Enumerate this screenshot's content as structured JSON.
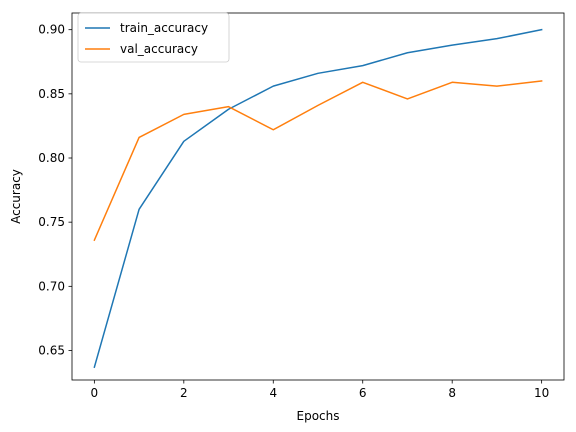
{
  "chart_data": {
    "type": "line",
    "title": "",
    "xlabel": "Epochs",
    "ylabel": "Accuracy",
    "x": [
      0,
      1,
      2,
      3,
      4,
      5,
      6,
      7,
      8,
      9,
      10
    ],
    "xlim": [
      -0.5,
      10.5
    ],
    "ylim": [
      0.627,
      0.913
    ],
    "xticks": [
      0,
      2,
      4,
      6,
      8,
      10
    ],
    "xtick_labels": [
      "0",
      "2",
      "4",
      "6",
      "8",
      "10"
    ],
    "yticks": [
      0.65,
      0.7,
      0.75,
      0.8,
      0.85,
      0.9
    ],
    "ytick_labels": [
      "0.65",
      "0.70",
      "0.75",
      "0.80",
      "0.85",
      "0.90"
    ],
    "grid": false,
    "legend": "top-left",
    "series": [
      {
        "name": "train_accuracy",
        "color": "#1f77b4",
        "values": [
          0.637,
          0.76,
          0.813,
          0.838,
          0.856,
          0.866,
          0.872,
          0.882,
          0.888,
          0.893,
          0.9
        ]
      },
      {
        "name": "val_accuracy",
        "color": "#ff7f0e",
        "values": [
          0.736,
          0.816,
          0.834,
          0.84,
          0.822,
          0.841,
          0.859,
          0.846,
          0.859,
          0.856,
          0.86
        ]
      }
    ]
  }
}
